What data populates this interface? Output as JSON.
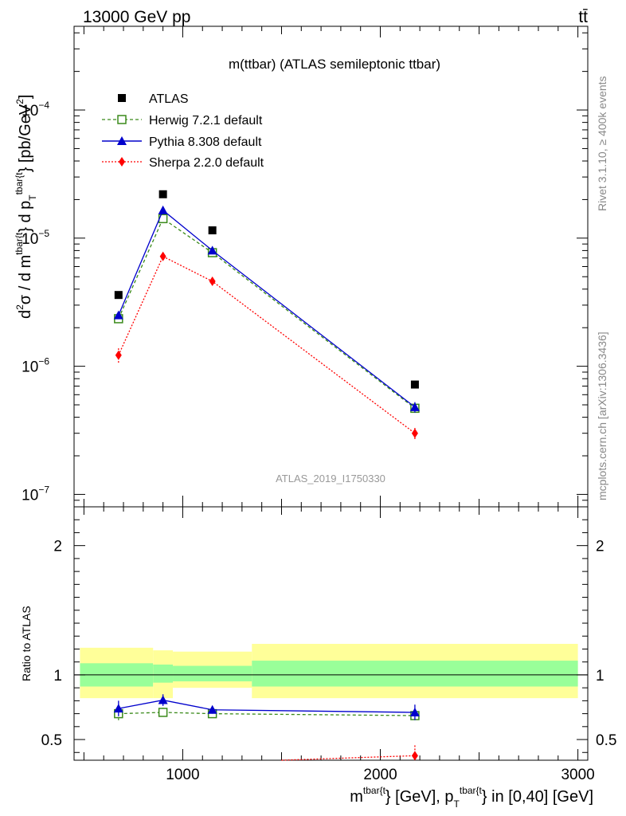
{
  "header": {
    "left": "13000 GeV pp",
    "right": "tt̄"
  },
  "side_text": {
    "rivet": "Rivet 3.1.10, ≥ 400k events",
    "mcplots": "mcplots.cern.ch [arXiv:1306.3436]"
  },
  "chart_data": [
    {
      "type": "scatter",
      "title": "m(ttbar) (ATLAS semileptonic ttbar)",
      "watermark": "ATLAS_2019_I1750330",
      "ylabel": {
        "d2": "d",
        "sup2": "2",
        "sigma_part": "σ / d m",
        "sup_tbar": "tbar{t",
        "brace_d_p": "} d p",
        "sub_T": "T",
        "sup_tbar2": "tbar{t",
        "unit": "} [pb/GeV",
        "unit_sup": "2",
        "unit_close": "]"
      },
      "scale": "log",
      "xlim": [
        450,
        3050
      ],
      "ylim": [
        8e-08,
        0.00045
      ],
      "yticks": [
        {
          "v": 1e-07,
          "base": "10",
          "exp": "−7"
        },
        {
          "v": 1e-06,
          "base": "10",
          "exp": "−6"
        },
        {
          "v": 1e-05,
          "base": "10",
          "exp": "−5"
        },
        {
          "v": 0.0001,
          "base": "10",
          "exp": "−4"
        }
      ],
      "legend_position": "top-left",
      "series": [
        {
          "name": "ATLAS",
          "color": "#000000",
          "marker": "square",
          "x": [
            675,
            900,
            1150,
            2175
          ],
          "y": [
            3.6e-06,
            2.2e-05,
            1.15e-05,
            7.2e-07
          ]
        },
        {
          "name": "Herwig 7.2.1 default",
          "color": "#3a8a1a",
          "marker": "open-square",
          "dash": "4,3",
          "x": [
            675,
            900,
            1150,
            2175
          ],
          "y": [
            2.35e-06,
            1.42e-05,
            7.7e-06,
            4.7e-07
          ]
        },
        {
          "name": "Pythia 8.308 default",
          "color": "#0000cc",
          "marker": "triangle",
          "x": [
            675,
            900,
            1150,
            2175
          ],
          "y": [
            2.5e-06,
            1.65e-05,
            8e-06,
            4.8e-07
          ],
          "err": [
            1.5e-07,
            8e-07,
            3.5e-07,
            4.5e-08
          ]
        },
        {
          "name": "Sherpa 2.2.0 default",
          "color": "#ff0000",
          "marker": "diamond",
          "dash": "2,2",
          "x": [
            675,
            900,
            1150,
            2175
          ],
          "y": [
            1.22e-06,
            7.2e-06,
            4.6e-06,
            3e-07
          ],
          "err": [
            1.6e-07,
            5.5e-07,
            2.5e-07,
            3e-08
          ]
        }
      ]
    },
    {
      "type": "scatter",
      "ylabel": "Ratio to ATLAS",
      "xlabel": {
        "m": "m",
        "sup1": "tbar{t",
        "mid": "} [GeV], p",
        "sub_T": "T",
        "sup2": "tbar{t",
        "end": "} in [0,40] [GeV]"
      },
      "xlim": [
        450,
        3050
      ],
      "ylim": [
        0.34,
        2.3
      ],
      "xticks": [
        {
          "v": 1000,
          "label": "1000"
        },
        {
          "v": 2000,
          "label": "2000"
        },
        {
          "v": 3000,
          "label": "3000"
        }
      ],
      "yticks": [
        {
          "v": 0.5,
          "label": "0.5"
        },
        {
          "v": 1,
          "label": "1"
        },
        {
          "v": 2,
          "label": "2"
        }
      ],
      "bands": [
        {
          "x": [
            480,
            850
          ],
          "inner": [
            0.91,
            1.09
          ],
          "outer": [
            0.82,
            1.21
          ]
        },
        {
          "x": [
            850,
            950
          ],
          "inner": [
            0.94,
            1.08
          ],
          "outer": [
            0.82,
            1.19
          ]
        },
        {
          "x": [
            950,
            1350
          ],
          "inner": [
            0.95,
            1.07
          ],
          "outer": [
            0.9,
            1.18
          ]
        },
        {
          "x": [
            1350,
            3000
          ],
          "inner": [
            0.91,
            1.11
          ],
          "outer": [
            0.82,
            1.24
          ]
        }
      ],
      "band_colors": {
        "inner": "#99ff99",
        "outer": "#ffff99"
      },
      "series": [
        {
          "name": "Herwig 7.2.1 default",
          "color": "#3a8a1a",
          "marker": "open-square",
          "dash": "4,3",
          "x": [
            675,
            900,
            1150,
            2175
          ],
          "y": [
            0.7,
            0.71,
            0.7,
            0.685
          ],
          "err": [
            0.05,
            0.035,
            0.02,
            0.04
          ]
        },
        {
          "name": "Pythia 8.308 default",
          "color": "#0000cc",
          "marker": "triangle",
          "x": [
            675,
            900,
            1150,
            2175
          ],
          "y": [
            0.74,
            0.805,
            0.73,
            0.71
          ],
          "err": [
            0.06,
            0.045,
            0.03,
            0.06
          ]
        },
        {
          "name": "Sherpa 2.2.0 default",
          "color": "#ff0000",
          "marker": "diamond",
          "dash": "2,2",
          "x": [
            1500,
            2175
          ],
          "y": [
            0.33,
            0.375
          ],
          "err": [
            0,
            0.08
          ]
        }
      ]
    }
  ]
}
